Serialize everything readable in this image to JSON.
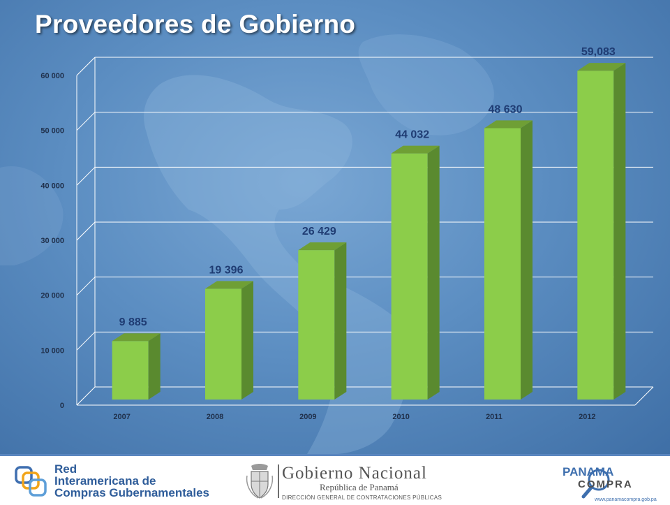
{
  "slide": {
    "title": "Proveedores de Gobierno"
  },
  "chart_data": {
    "type": "bar",
    "categories": [
      "2007",
      "2008",
      "2009",
      "2010",
      "2011",
      "2012"
    ],
    "values": [
      9885,
      19396,
      26429,
      44032,
      48630,
      59083
    ],
    "data_labels": [
      "9 885",
      "19 396",
      "26 429",
      "44 032",
      "48 630",
      "59,083"
    ],
    "y_ticks": [
      0,
      10000,
      20000,
      30000,
      40000,
      50000,
      60000
    ],
    "y_tick_labels": [
      "0",
      "10 000",
      "20 000",
      "30 000",
      "40 000",
      "50 000",
      "60 000"
    ],
    "ylim": [
      0,
      60000
    ],
    "grid": true,
    "title": "",
    "xlabel": "",
    "ylabel": "",
    "colors": {
      "bar_front": "#8ccd4a",
      "bar_side": "#5a8a2f",
      "bar_top": "#6f9f35",
      "label": "#1f3c73"
    }
  },
  "footer": {
    "ricg": {
      "line1": "Red",
      "line2": "Interamericana de",
      "line3": "Compras Gubernamentales"
    },
    "gobierno": {
      "title": "Gobierno Nacional",
      "subtitle": "República de Panamá",
      "subtitle2": "DIRECCIÓN GENERAL DE CONTRATACIONES PÚBLICAS"
    },
    "panama_compra": {
      "word1": "PANAMA",
      "word2": "COMPRA",
      "url": "www.panamacompra.gob.pa"
    }
  }
}
